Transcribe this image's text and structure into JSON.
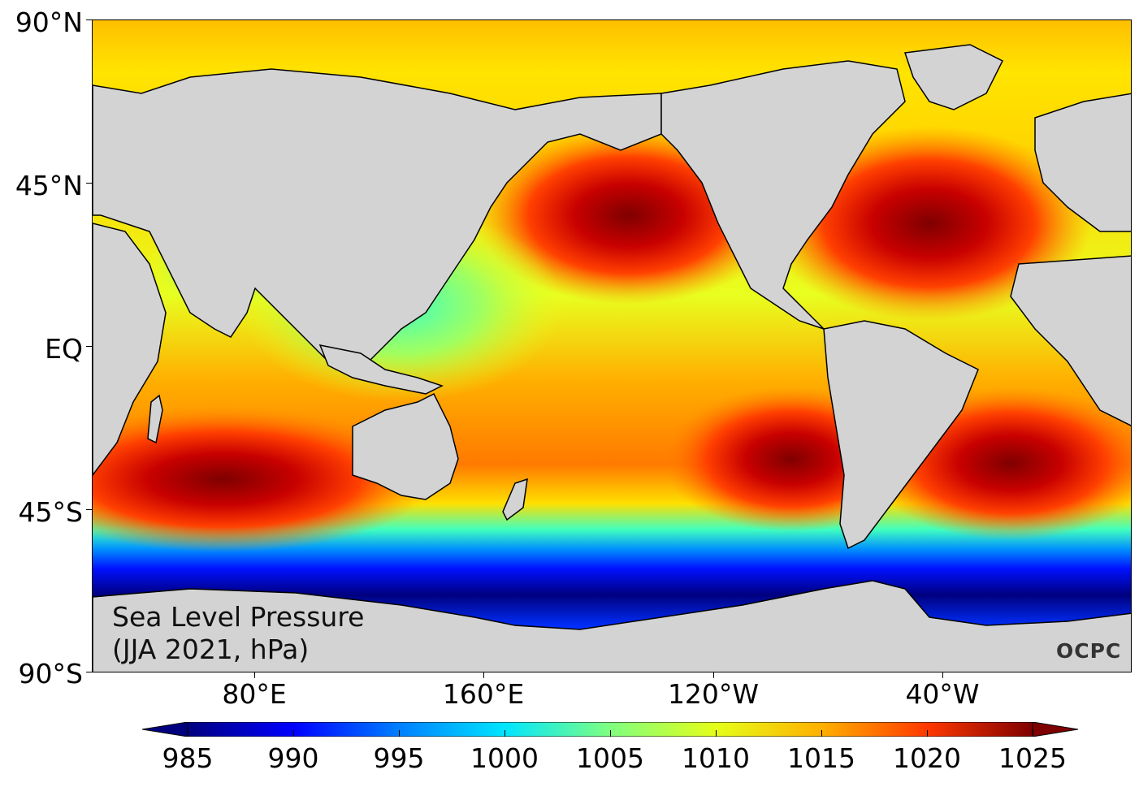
{
  "title": {
    "line1": "Sea Level Pressure",
    "line2": "(JJA 2021, hPa)"
  },
  "logo": "OCPC",
  "latitude_labels": [
    "90°N",
    "45°N",
    "EQ",
    "45°S",
    "90°S"
  ],
  "longitude_labels": [
    "80°E",
    "160°E",
    "120°W",
    "40°W"
  ],
  "colorbar": {
    "labels": [
      "985",
      "990",
      "995",
      "1000",
      "1005",
      "1010",
      "1015",
      "1020",
      "1025"
    ],
    "min": 985,
    "max": 1025,
    "colors": [
      "#00007f",
      "#0000ff",
      "#007fff",
      "#00e5ff",
      "#7fff7f",
      "#e5ff19",
      "#ffb000",
      "#ff3800",
      "#7f0000"
    ]
  },
  "colors": {
    "land": "#d3d3d3",
    "high_pressure": "#8b0000",
    "low_pressure": "#00007f"
  }
}
